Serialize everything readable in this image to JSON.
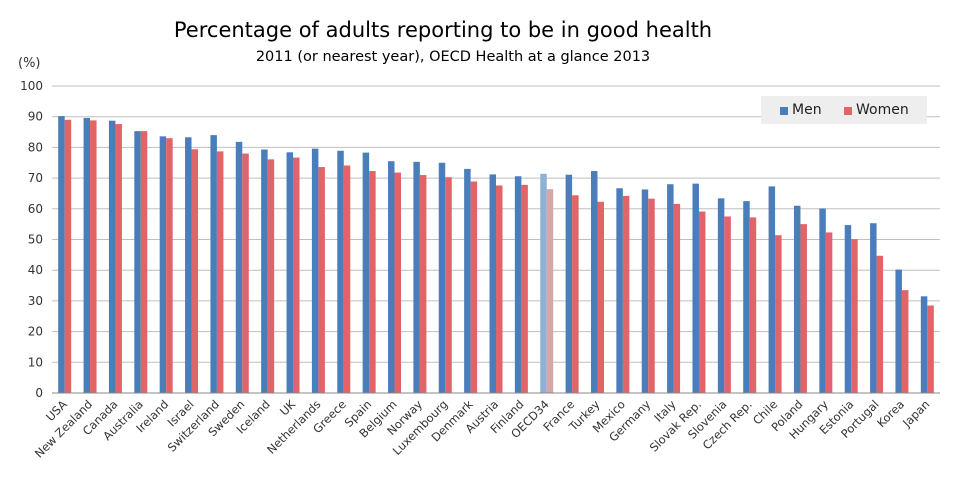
{
  "chart_data": {
    "type": "bar",
    "title": "Percentage of adults reporting to be in good health",
    "subtitle": "2011 (or nearest year), OECD Health at a glance 2013",
    "ylabel": "(%)",
    "xlabel": "",
    "ylim": [
      0,
      100
    ],
    "yticks": [
      0,
      10,
      20,
      30,
      40,
      50,
      60,
      70,
      80,
      90,
      100
    ],
    "grid": true,
    "legend_position": "top-right",
    "categories": [
      "USA",
      "New Zealand",
      "Canada",
      "Australia",
      "Ireland",
      "Israel",
      "Switzerland",
      "Sweden",
      "Iceland",
      "UK",
      "Netherlands",
      "Greece",
      "Spain",
      "Belgium",
      "Norway",
      "Luxembourg",
      "Denmark",
      "Austria",
      "Finland",
      "OECD34",
      "France",
      "Turkey",
      "Mexico",
      "Germany",
      "Italy",
      "Slovak Rep.",
      "Slovenia",
      "Czech Rep.",
      "Chile",
      "Poland",
      "Hungary",
      "Estonia",
      "Portugal",
      "Korea",
      "Japan"
    ],
    "highlight_category": "OECD34",
    "series": [
      {
        "name": "Men",
        "color": "#4a7ebb",
        "values": [
          90.2,
          89.6,
          88.7,
          85.3,
          83.6,
          83.3,
          84.0,
          81.8,
          79.3,
          78.4,
          79.6,
          78.9,
          78.3,
          75.5,
          75.3,
          75.0,
          73.0,
          71.2,
          70.6,
          71.4,
          71.1,
          72.3,
          66.7,
          66.3,
          68.0,
          68.2,
          63.4,
          62.5,
          67.3,
          61.0,
          60.1,
          54.7,
          55.3,
          40.2,
          31.5
        ]
      },
      {
        "name": "Women",
        "color": "#e06468",
        "values": [
          89.0,
          88.8,
          87.6,
          85.3,
          83.0,
          79.4,
          78.7,
          78.0,
          76.1,
          76.7,
          73.6,
          74.1,
          72.3,
          71.8,
          71.0,
          70.3,
          68.9,
          67.6,
          67.8,
          66.4,
          64.4,
          62.3,
          64.2,
          63.3,
          61.6,
          59.1,
          57.5,
          57.2,
          51.4,
          55.0,
          52.3,
          50.1,
          44.7,
          33.5,
          28.5
        ]
      }
    ],
    "highlight_colors": {
      "Men": "#8eb1d6",
      "Women": "#d8a6a8",
      "label": "#e14b2e"
    }
  }
}
